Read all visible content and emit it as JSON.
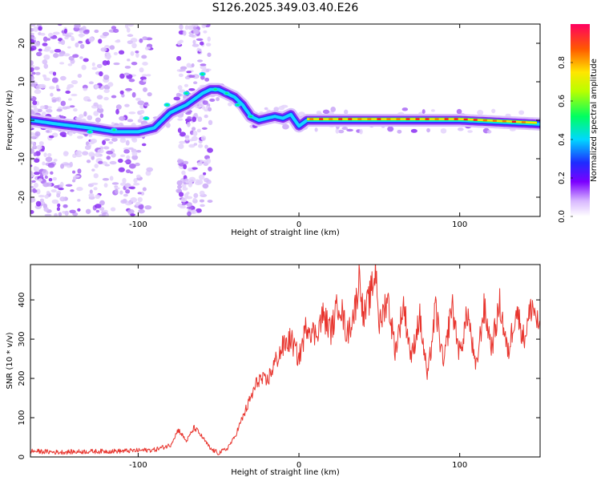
{
  "chart_data": [
    {
      "type": "heatmap",
      "title": "S126.2025.349.03.40.E26",
      "xlabel": "Height of straight line (km)",
      "ylabel": "Frequency (Hz)",
      "xlim": [
        -167,
        150
      ],
      "ylim": [
        -25,
        25
      ],
      "xticks": [
        -100,
        0,
        100
      ],
      "xtick_labels": [
        "-100",
        "0",
        "100"
      ],
      "yticks": [
        -20,
        -10,
        0,
        10,
        20
      ],
      "ytick_labels": [
        "-20",
        "-10",
        "0",
        "10",
        "20"
      ],
      "ridge": {
        "x": [
          -167,
          -150,
          -130,
          -115,
          -100,
          -90,
          -80,
          -70,
          -60,
          -55,
          -50,
          -45,
          -40,
          -35,
          -30,
          -25,
          -20,
          -15,
          -10,
          -5,
          0,
          5,
          20,
          50,
          100,
          150
        ],
        "y": [
          0,
          -1,
          -2,
          -3,
          -3,
          -2,
          2,
          4,
          7,
          8,
          8,
          7,
          6,
          4,
          1,
          0,
          0.5,
          1,
          0.5,
          1.5,
          -1.5,
          0,
          0,
          0,
          0,
          -1
        ]
      },
      "colorbar": {
        "label": "Normalized spectral amplitude",
        "range": [
          0,
          1
        ],
        "ticks": [
          0.0,
          0.2,
          0.4,
          0.6,
          0.8
        ],
        "tick_labels": [
          "0.0",
          "0.2",
          "0.4",
          "0.6",
          "0.8"
        ]
      }
    },
    {
      "type": "line",
      "xlabel": "Height of straight line (km)",
      "ylabel": "SNR (10 * v/v)",
      "xlim": [
        -167,
        150
      ],
      "ylim": [
        0,
        490
      ],
      "xticks": [
        -100,
        0,
        100
      ],
      "xtick_labels": [
        "-100",
        "0",
        "100"
      ],
      "yticks": [
        0,
        100,
        200,
        300,
        400
      ],
      "ytick_labels": [
        "0",
        "100",
        "200",
        "300",
        "400"
      ],
      "series": [
        {
          "name": "SNR",
          "color": "#e8352e",
          "x": [
            -167,
            -150,
            -130,
            -110,
            -90,
            -80,
            -75,
            -70,
            -65,
            -60,
            -55,
            -50,
            -45,
            -40,
            -35,
            -30,
            -25,
            -20,
            -15,
            -10,
            -5,
            0,
            5,
            10,
            15,
            20,
            25,
            30,
            35,
            38,
            40,
            45,
            48,
            50,
            55,
            60,
            65,
            70,
            75,
            80,
            85,
            90,
            95,
            100,
            105,
            110,
            115,
            120,
            125,
            130,
            135,
            140,
            145,
            150
          ],
          "y": [
            15,
            12,
            14,
            15,
            18,
            30,
            70,
            40,
            75,
            50,
            20,
            10,
            20,
            50,
            100,
            150,
            200,
            190,
            240,
            280,
            300,
            250,
            340,
            310,
            360,
            320,
            400,
            310,
            380,
            470,
            350,
            420,
            480,
            330,
            410,
            270,
            390,
            250,
            360,
            200,
            380,
            230,
            390,
            260,
            370,
            220,
            380,
            280,
            390,
            260,
            380,
            300,
            390,
            320
          ]
        }
      ]
    }
  ]
}
